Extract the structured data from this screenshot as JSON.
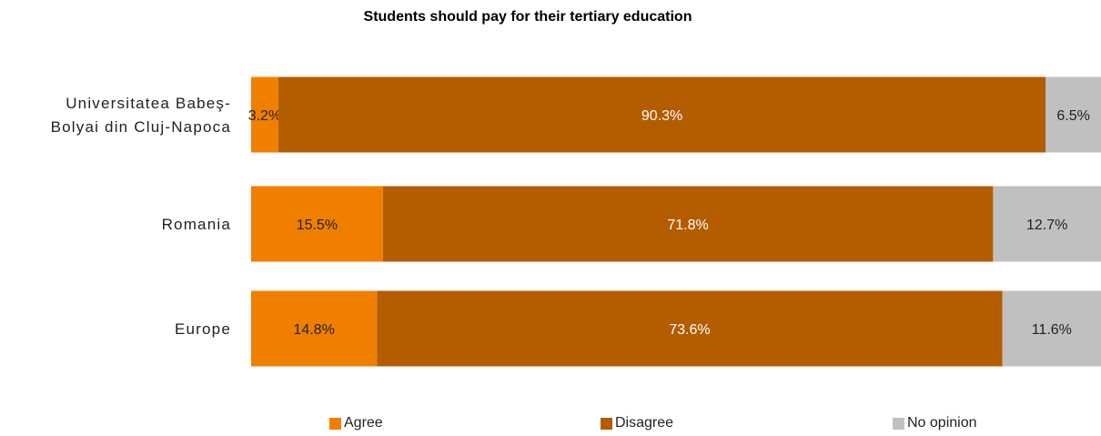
{
  "chart_data": {
    "type": "bar",
    "orientation": "horizontal",
    "stacked": "100%",
    "title": "Students should pay for their tertiary education",
    "categories": [
      [
        "Universitatea Babeş-",
        "Bolyai din Cluj-Napoca"
      ],
      [
        "Romania"
      ],
      [
        "Europe"
      ]
    ],
    "series": [
      {
        "name": "Agree",
        "color": "#f07f00",
        "values": [
          3.2,
          15.5,
          14.8
        ],
        "labels": [
          "3.2%",
          "15.5%",
          "14.8%"
        ],
        "label_color": "#222222"
      },
      {
        "name": "Disagree",
        "color": "#b45c00",
        "values": [
          90.3,
          71.8,
          73.6
        ],
        "labels": [
          "90.3%",
          "71.8%",
          "73.6%"
        ],
        "label_color": "#ffffff"
      },
      {
        "name": "No opinion",
        "color": "#c0c0c0",
        "values": [
          6.5,
          12.7,
          11.6
        ],
        "labels": [
          "6.5%",
          "12.7%",
          "11.6%"
        ],
        "label_color": "#222222"
      }
    ],
    "xlim": [
      0,
      100
    ],
    "grid": false,
    "legend_position": "bottom"
  }
}
